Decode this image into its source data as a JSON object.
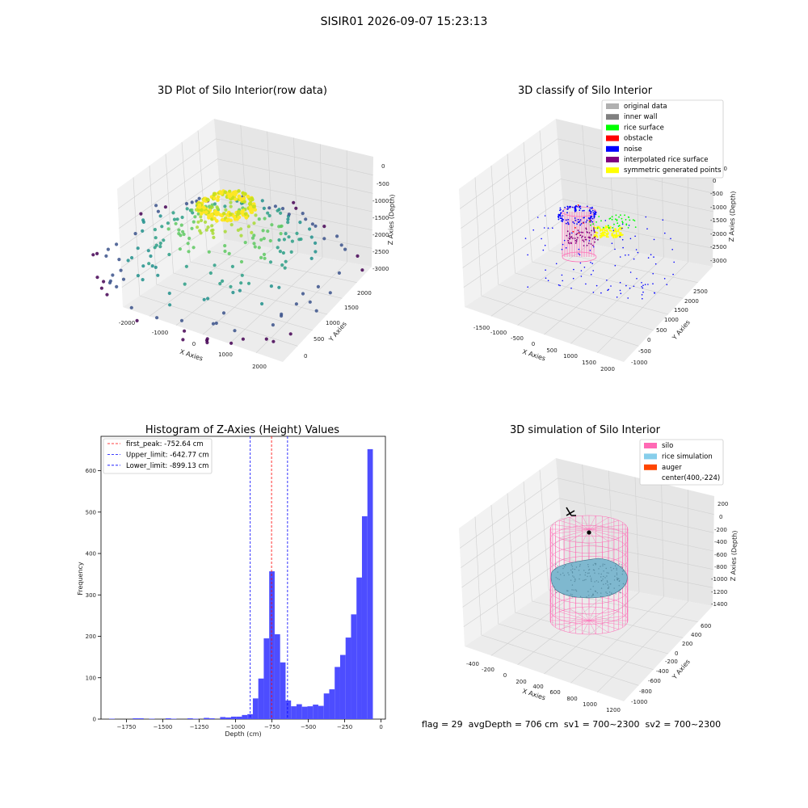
{
  "suptitle": "SISIR01 2026-09-07 15:23:13",
  "status_line": "flag = 29  avgDepth = 706 cm  sv1 = 700~2300  sv2 = 700~2300",
  "chart_data": [
    {
      "type": "scatter",
      "title": "3D Plot of Silo Interior(row data)",
      "xlabel": "X Axies",
      "ylabel": "Y Axies",
      "zlabel": "Z Axies (Depth)",
      "x_ticks": [
        "-2000",
        "-1000",
        "0",
        "1000",
        "2000"
      ],
      "y_ticks": [
        "0",
        "500",
        "1000",
        "1500",
        "2000"
      ],
      "z_ticks": [
        "0",
        "-500",
        "-1000",
        "-1500",
        "-2000",
        "-2500",
        "-3000"
      ],
      "colormap": "viridis"
    },
    {
      "type": "scatter",
      "title": "3D classify of Silo Interior",
      "xlabel": "X Axies",
      "ylabel": "Y Axies",
      "zlabel": "Z Axies (Depth)",
      "x_ticks": [
        "-1500",
        "-1000",
        "-500",
        "0",
        "500",
        "1000",
        "1500",
        "2000"
      ],
      "y_ticks": [
        "-1000",
        "-500",
        "0",
        "500",
        "1000",
        "1500",
        "2000",
        "2500"
      ],
      "z_ticks": [
        "0",
        "-500",
        "-1000",
        "-1500",
        "-2000",
        "-2500",
        "-3000"
      ],
      "z_top_label": "00",
      "legend": [
        {
          "label": "original data",
          "color": "#b0b0b0"
        },
        {
          "label": "inner wall",
          "color": "#808080"
        },
        {
          "label": "rice surface",
          "color": "#00ff00"
        },
        {
          "label": "obstacle",
          "color": "#ff0000"
        },
        {
          "label": "noise",
          "color": "#0000ff"
        },
        {
          "label": "interpolated rice surface",
          "color": "#800080"
        },
        {
          "label": "symmetric generated points",
          "color": "#ffff00"
        }
      ]
    },
    {
      "type": "bar",
      "title": "Histogram of Z-Axies (Height) Values",
      "xlabel": "Depth (cm)",
      "ylabel": "Frequency",
      "xlim": [
        -1925,
        30
      ],
      "ylim": [
        0,
        683
      ],
      "x_ticks": [
        -1750,
        -1500,
        -1250,
        -1000,
        -750,
        -500,
        -250,
        0
      ],
      "x_tick_labels": [
        "−1750",
        "−1500",
        "−1250",
        "−1000",
        "−750",
        "−500",
        "−250",
        "0"
      ],
      "y_ticks": [
        0,
        100,
        200,
        300,
        400,
        500,
        600
      ],
      "bin_width": 37.5,
      "bar_color": "#4d4dff",
      "bins": [
        {
          "x": -1850,
          "v": 1
        },
        {
          "x": -1687.5,
          "v": 2
        },
        {
          "x": -1650,
          "v": 2
        },
        {
          "x": -1575,
          "v": 1
        },
        {
          "x": -1462.5,
          "v": 2
        },
        {
          "x": -1425,
          "v": 1
        },
        {
          "x": -1312.5,
          "v": 2
        },
        {
          "x": -1275,
          "v": 1
        },
        {
          "x": -1200,
          "v": 3
        },
        {
          "x": -1162.5,
          "v": 2
        },
        {
          "x": -1087.5,
          "v": 5
        },
        {
          "x": -1050,
          "v": 4
        },
        {
          "x": -1012.5,
          "v": 6
        },
        {
          "x": -975,
          "v": 6
        },
        {
          "x": -937.5,
          "v": 10
        },
        {
          "x": -900,
          "v": 12
        },
        {
          "x": -862.5,
          "v": 50
        },
        {
          "x": -825,
          "v": 98
        },
        {
          "x": -787.5,
          "v": 195
        },
        {
          "x": -750,
          "v": 357
        },
        {
          "x": -712.5,
          "v": 205
        },
        {
          "x": -675,
          "v": 137
        },
        {
          "x": -637.5,
          "v": 45
        },
        {
          "x": -600,
          "v": 31
        },
        {
          "x": -562.5,
          "v": 36
        },
        {
          "x": -525,
          "v": 30
        },
        {
          "x": -487.5,
          "v": 31
        },
        {
          "x": -450,
          "v": 35
        },
        {
          "x": -412.5,
          "v": 32
        },
        {
          "x": -375,
          "v": 62
        },
        {
          "x": -337.5,
          "v": 72
        },
        {
          "x": -300,
          "v": 126
        },
        {
          "x": -262.5,
          "v": 155
        },
        {
          "x": -225,
          "v": 197
        },
        {
          "x": -187.5,
          "v": 253
        },
        {
          "x": -150,
          "v": 342
        },
        {
          "x": -112.5,
          "v": 490
        },
        {
          "x": -75,
          "v": 652
        }
      ],
      "vlines": [
        {
          "label": "first_peak: -752.64 cm",
          "x": -752.64,
          "color": "#ff0000"
        },
        {
          "label": "Upper_limit: -642.77 cm",
          "x": -642.77,
          "color": "#0000ff"
        },
        {
          "label": "Lower_limit: -899.13 cm",
          "x": -899.13,
          "color": "#0000ff"
        }
      ]
    },
    {
      "type": "scatter",
      "title": "3D simulation of Silo Interior",
      "xlabel": "X Axies",
      "ylabel": "Y Axies",
      "zlabel": "Z Axies (Depth)",
      "x_ticks": [
        "-400",
        "-200",
        "0",
        "200",
        "400",
        "600",
        "800",
        "1000",
        "1200"
      ],
      "y_ticks": [
        "-1000",
        "-800",
        "-600",
        "-400",
        "-200",
        "0",
        "200",
        "400",
        "600"
      ],
      "z_ticks": [
        "200",
        "0",
        "-200",
        "-400",
        "-600",
        "-800",
        "-1000",
        "-1200",
        "-1400"
      ],
      "legend": [
        {
          "label": "silo",
          "color": "#ff69b4"
        },
        {
          "label": "rice simulation",
          "color": "#87ceeb"
        },
        {
          "label": "auger",
          "color": "#ff4500"
        },
        {
          "label": "center(400,-224)",
          "color": ""
        }
      ]
    }
  ]
}
